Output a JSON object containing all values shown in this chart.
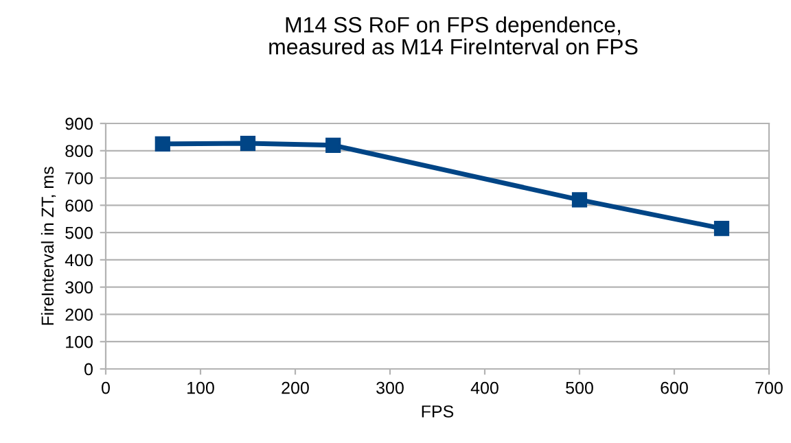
{
  "chart_data": {
    "type": "line",
    "title": "M14 SS RoF on FPS dependence,\nmeasured as M14 FireInterval on FPS",
    "xlabel": "FPS",
    "ylabel": "FireInterval in ZT, ms",
    "x": [
      60,
      150,
      240,
      500,
      650
    ],
    "series": [
      {
        "color": "#004586",
        "values": [
          825,
          827,
          820,
          620,
          515
        ]
      }
    ],
    "xlim": [
      0,
      700
    ],
    "xticks": [
      0,
      100,
      200,
      300,
      400,
      500,
      600,
      700
    ],
    "ylim": [
      0,
      900
    ],
    "yticks": [
      0,
      100,
      200,
      300,
      400,
      500,
      600,
      700,
      800,
      900
    ],
    "grid": "y",
    "marker": "square",
    "line_style": "solid"
  }
}
